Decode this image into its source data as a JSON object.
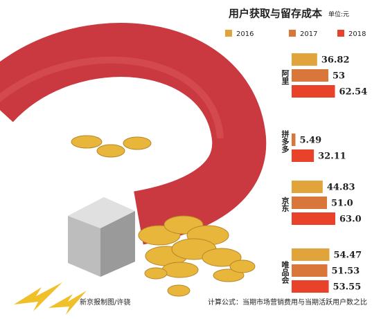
{
  "chart_data": {
    "type": "bar",
    "orientation": "horizontal",
    "title": "用户获取与留存成本",
    "unit": "单位:元",
    "categories": [
      "阿里",
      "拼多多",
      "京东",
      "唯品会"
    ],
    "series": [
      {
        "name": "2016",
        "color": "#e0a43a",
        "values": [
          36.82,
          null,
          44.83,
          54.47
        ],
        "value_labels": [
          "36.82",
          null,
          "44.83",
          "54.47"
        ]
      },
      {
        "name": "2017",
        "color": "#d9773a",
        "values": [
          53,
          5.49,
          51.0,
          51.53
        ],
        "value_labels": [
          "53",
          "5.49",
          "51.0",
          "51.53"
        ]
      },
      {
        "name": "2018",
        "color": "#e8432a",
        "values": [
          62.54,
          32.11,
          63.0,
          53.55
        ],
        "value_labels": [
          "62.54",
          "32.11",
          "63.0",
          "53.55"
        ]
      }
    ],
    "source": "新京报制图/许骁",
    "note": "计算公式：当期市场营销费用与当期活跃用户数之比"
  }
}
